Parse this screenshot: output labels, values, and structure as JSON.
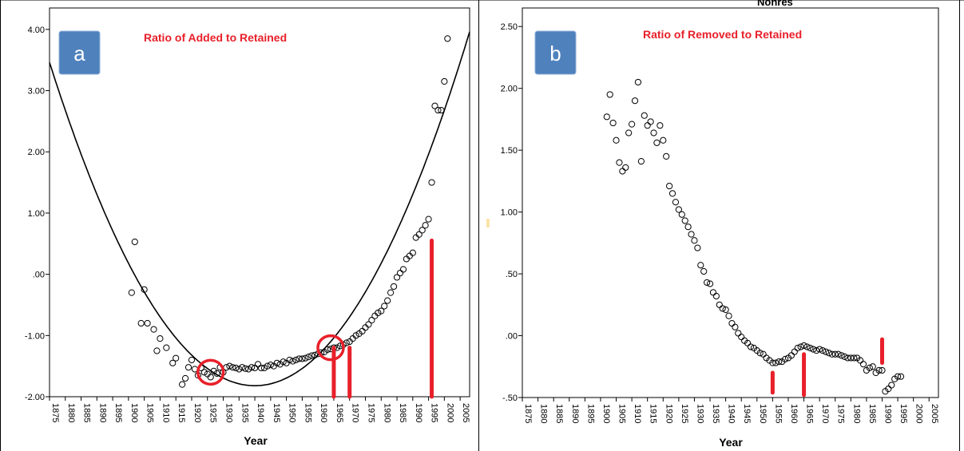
{
  "colors": {
    "annotation": "#e8202a",
    "badge": "#4f81bd",
    "points": "#000000",
    "fit_line": "#000000",
    "stray_mark": "#fce4a8"
  },
  "partial_header_text": "Nonres",
  "chart_data": [
    {
      "panel_label": "a",
      "type": "scatter",
      "title": "Ratio of Added to Retained",
      "xlabel": "Year",
      "ylabel": "",
      "xlim": [
        1875,
        2008
      ],
      "ylim": [
        -2.0,
        4.35
      ],
      "x_ticks": [
        "1875",
        "1880",
        "1885",
        "1890",
        "1895",
        "1900",
        "1905",
        "1910",
        "1915",
        "1920",
        "1925",
        "1930",
        "1935",
        "1940",
        "1945",
        "1950",
        "1955",
        "1960",
        "1965",
        "1970",
        "1975",
        "1980",
        "1985",
        "1990",
        "1995",
        "2000",
        "2005"
      ],
      "y_ticks": [
        {
          "value": 4.0,
          "label": "4.00"
        },
        {
          "value": 3.0,
          "label": "3.00"
        },
        {
          "value": 2.0,
          "label": "2.00"
        },
        {
          "value": 1.0,
          "label": "1.00"
        },
        {
          "value": 0.0,
          "label": ".00"
        },
        {
          "value": -1.0,
          "label": "-1.00"
        },
        {
          "value": -2.0,
          "label": "-2.00"
        }
      ],
      "points": [
        [
          1901,
          -0.3
        ],
        [
          1902,
          0.53
        ],
        [
          1904,
          -0.8
        ],
        [
          1905,
          -0.25
        ],
        [
          1906,
          -0.8
        ],
        [
          1908,
          -0.9
        ],
        [
          1909,
          -1.25
        ],
        [
          1910,
          -1.05
        ],
        [
          1912,
          -1.2
        ],
        [
          1914,
          -1.45
        ],
        [
          1915,
          -1.37
        ],
        [
          1917,
          -1.8
        ],
        [
          1918,
          -1.7
        ],
        [
          1919,
          -1.52
        ],
        [
          1920,
          -1.4
        ],
        [
          1921,
          -1.55
        ],
        [
          1922,
          -1.65
        ],
        [
          1923,
          -1.53
        ],
        [
          1924,
          -1.6
        ],
        [
          1925,
          -1.63
        ],
        [
          1926,
          -1.68
        ],
        [
          1927,
          -1.58
        ],
        [
          1928,
          -1.62
        ],
        [
          1929,
          -1.52
        ],
        [
          1930,
          -1.6
        ],
        [
          1931,
          -1.52
        ],
        [
          1932,
          -1.5
        ],
        [
          1933,
          -1.52
        ],
        [
          1934,
          -1.53
        ],
        [
          1935,
          -1.55
        ],
        [
          1936,
          -1.52
        ],
        [
          1937,
          -1.54
        ],
        [
          1938,
          -1.55
        ],
        [
          1939,
          -1.52
        ],
        [
          1940,
          -1.53
        ],
        [
          1941,
          -1.47
        ],
        [
          1942,
          -1.53
        ],
        [
          1943,
          -1.53
        ],
        [
          1944,
          -1.5
        ],
        [
          1945,
          -1.48
        ],
        [
          1946,
          -1.5
        ],
        [
          1947,
          -1.45
        ],
        [
          1948,
          -1.47
        ],
        [
          1949,
          -1.43
        ],
        [
          1950,
          -1.45
        ],
        [
          1951,
          -1.4
        ],
        [
          1952,
          -1.42
        ],
        [
          1953,
          -1.4
        ],
        [
          1954,
          -1.38
        ],
        [
          1955,
          -1.38
        ],
        [
          1956,
          -1.37
        ],
        [
          1957,
          -1.35
        ],
        [
          1958,
          -1.33
        ],
        [
          1959,
          -1.32
        ],
        [
          1960,
          -1.3
        ],
        [
          1961,
          -1.28
        ],
        [
          1962,
          -1.27
        ],
        [
          1963,
          -1.23
        ],
        [
          1964,
          -1.22
        ],
        [
          1965,
          -1.2
        ],
        [
          1966,
          -1.2
        ],
        [
          1967,
          -1.17
        ],
        [
          1968,
          -1.15
        ],
        [
          1969,
          -1.12
        ],
        [
          1970,
          -1.1
        ],
        [
          1971,
          -1.05
        ],
        [
          1972,
          -1.0
        ],
        [
          1973,
          -0.97
        ],
        [
          1974,
          -0.93
        ],
        [
          1975,
          -0.87
        ],
        [
          1976,
          -0.82
        ],
        [
          1977,
          -0.75
        ],
        [
          1978,
          -0.68
        ],
        [
          1979,
          -0.63
        ],
        [
          1980,
          -0.6
        ],
        [
          1981,
          -0.52
        ],
        [
          1982,
          -0.43
        ],
        [
          1983,
          -0.3
        ],
        [
          1984,
          -0.2
        ],
        [
          1985,
          -0.05
        ],
        [
          1986,
          0.02
        ],
        [
          1987,
          0.08
        ],
        [
          1988,
          0.25
        ],
        [
          1989,
          0.3
        ],
        [
          1990,
          0.35
        ],
        [
          1991,
          0.6
        ],
        [
          1992,
          0.65
        ],
        [
          1993,
          0.72
        ],
        [
          1994,
          0.8
        ],
        [
          1995,
          0.9
        ],
        [
          1996,
          1.5
        ],
        [
          1997,
          2.75
        ],
        [
          1998,
          2.68
        ],
        [
          1999,
          2.68
        ],
        [
          2000,
          3.15
        ],
        [
          2001,
          3.85
        ]
      ],
      "fit_curve": {
        "form": "quadratic",
        "vertex_x": 1940,
        "vertex_y": -1.82,
        "a": 0.00125
      },
      "annotations": {
        "circles": [
          [
            1926,
            -1.6
          ],
          [
            1964,
            -1.2
          ]
        ],
        "bars": [
          {
            "x": 1965,
            "from": -2.0,
            "to": -1.2
          },
          {
            "x": 1970,
            "from": -2.0,
            "to": -1.2
          },
          {
            "x": 1996,
            "from": -2.0,
            "to": 0.55
          }
        ]
      }
    },
    {
      "panel_label": "b",
      "type": "scatter",
      "title": "Ratio of Removed to Retained",
      "xlabel": "Year",
      "ylabel": "",
      "xlim": [
        1875,
        2008
      ],
      "ylim": [
        -0.5,
        2.65
      ],
      "x_ticks": [
        "1875",
        "1880",
        "1885",
        "1890",
        "1895",
        "1900",
        "1905",
        "1910",
        "1915",
        "1920",
        "1925",
        "1930",
        "1935",
        "1940",
        "1945",
        "1950",
        "1955",
        "1960",
        "1965",
        "1970",
        "1975",
        "1980",
        "1985",
        "1990",
        "1995",
        "2000",
        "2005"
      ],
      "y_ticks": [
        {
          "value": 2.5,
          "label": "2.50"
        },
        {
          "value": 2.0,
          "label": "2.00"
        },
        {
          "value": 1.5,
          "label": "1.50"
        },
        {
          "value": 1.0,
          "label": "1.00"
        },
        {
          "value": 0.5,
          "label": ".50"
        },
        {
          "value": 0.0,
          "label": ".00"
        },
        {
          "value": -0.5,
          "label": "-.50"
        }
      ],
      "points": [
        [
          1902,
          1.77
        ],
        [
          1903,
          1.95
        ],
        [
          1904,
          1.72
        ],
        [
          1905,
          1.58
        ],
        [
          1906,
          1.4
        ],
        [
          1907,
          1.33
        ],
        [
          1908,
          1.36
        ],
        [
          1909,
          1.64
        ],
        [
          1910,
          1.71
        ],
        [
          1911,
          1.9
        ],
        [
          1912,
          2.05
        ],
        [
          1913,
          1.41
        ],
        [
          1914,
          1.78
        ],
        [
          1915,
          1.7
        ],
        [
          1916,
          1.73
        ],
        [
          1917,
          1.64
        ],
        [
          1918,
          1.56
        ],
        [
          1919,
          1.7
        ],
        [
          1920,
          1.58
        ],
        [
          1921,
          1.45
        ],
        [
          1922,
          1.21
        ],
        [
          1923,
          1.15
        ],
        [
          1924,
          1.08
        ],
        [
          1925,
          1.02
        ],
        [
          1926,
          0.98
        ],
        [
          1927,
          0.93
        ],
        [
          1928,
          0.88
        ],
        [
          1929,
          0.82
        ],
        [
          1930,
          0.77
        ],
        [
          1931,
          0.71
        ],
        [
          1932,
          0.57
        ],
        [
          1933,
          0.52
        ],
        [
          1934,
          0.43
        ],
        [
          1935,
          0.42
        ],
        [
          1936,
          0.35
        ],
        [
          1937,
          0.32
        ],
        [
          1938,
          0.25
        ],
        [
          1939,
          0.22
        ],
        [
          1940,
          0.21
        ],
        [
          1941,
          0.16
        ],
        [
          1942,
          0.1
        ],
        [
          1943,
          0.07
        ],
        [
          1944,
          0.02
        ],
        [
          1945,
          -0.01
        ],
        [
          1946,
          -0.04
        ],
        [
          1947,
          -0.06
        ],
        [
          1948,
          -0.09
        ],
        [
          1949,
          -0.1
        ],
        [
          1950,
          -0.12
        ],
        [
          1951,
          -0.14
        ],
        [
          1952,
          -0.15
        ],
        [
          1953,
          -0.18
        ],
        [
          1954,
          -0.2
        ],
        [
          1955,
          -0.22
        ],
        [
          1956,
          -0.22
        ],
        [
          1957,
          -0.21
        ],
        [
          1958,
          -0.21
        ],
        [
          1959,
          -0.19
        ],
        [
          1960,
          -0.18
        ],
        [
          1961,
          -0.16
        ],
        [
          1962,
          -0.13
        ],
        [
          1963,
          -0.1
        ],
        [
          1964,
          -0.09
        ],
        [
          1965,
          -0.08
        ],
        [
          1966,
          -0.09
        ],
        [
          1967,
          -0.1
        ],
        [
          1968,
          -0.11
        ],
        [
          1969,
          -0.12
        ],
        [
          1970,
          -0.11
        ],
        [
          1971,
          -0.12
        ],
        [
          1972,
          -0.13
        ],
        [
          1973,
          -0.14
        ],
        [
          1974,
          -0.15
        ],
        [
          1975,
          -0.15
        ],
        [
          1976,
          -0.15
        ],
        [
          1977,
          -0.16
        ],
        [
          1978,
          -0.17
        ],
        [
          1979,
          -0.18
        ],
        [
          1980,
          -0.18
        ],
        [
          1981,
          -0.18
        ],
        [
          1982,
          -0.18
        ],
        [
          1983,
          -0.2
        ],
        [
          1984,
          -0.23
        ],
        [
          1985,
          -0.28
        ],
        [
          1986,
          -0.26
        ],
        [
          1987,
          -0.25
        ],
        [
          1988,
          -0.3
        ],
        [
          1989,
          -0.28
        ],
        [
          1990,
          -0.28
        ],
        [
          1991,
          -0.45
        ],
        [
          1992,
          -0.43
        ],
        [
          1993,
          -0.4
        ],
        [
          1994,
          -0.35
        ],
        [
          1995,
          -0.33
        ],
        [
          1996,
          -0.33
        ]
      ],
      "annotations": {
        "bars": [
          {
            "x": 1955,
            "from": -0.46,
            "to": -0.3
          },
          {
            "x": 1965,
            "from": -0.48,
            "to": -0.15
          },
          {
            "x": 1990,
            "from": -0.22,
            "to": -0.03
          }
        ]
      }
    }
  ]
}
